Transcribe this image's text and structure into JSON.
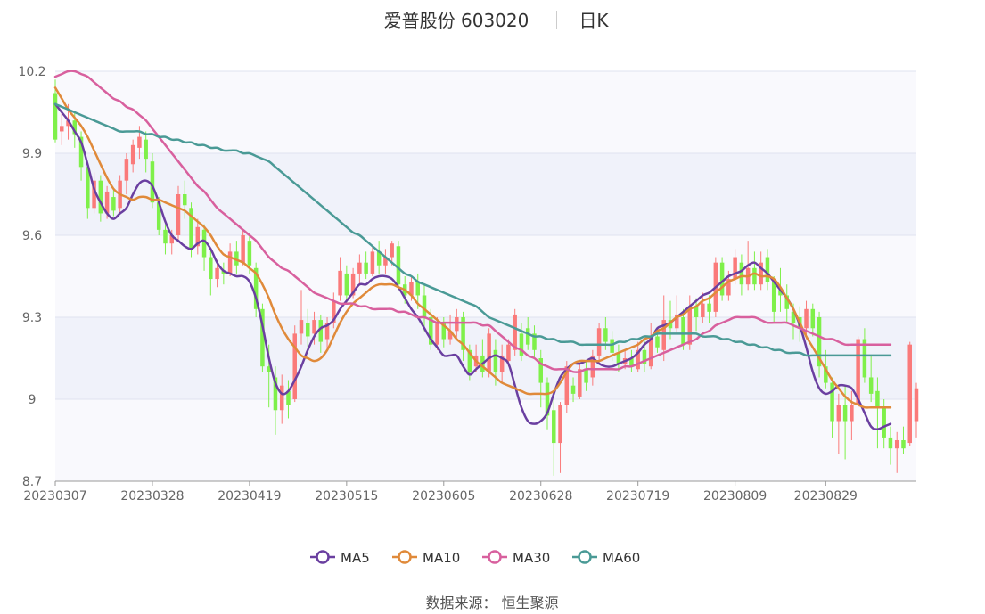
{
  "header": {
    "title": "爱普股份 603020",
    "period": "日K"
  },
  "source_text": "数据来源： 恒生聚源",
  "chart_data": {
    "type": "candlestick",
    "ylim": [
      8.7,
      10.2
    ],
    "yticks": [
      "10.2",
      "9.9",
      "9.6",
      "9.3",
      "9"
    ],
    "y_bottom_label": "8.7",
    "xticks": [
      {
        "label": "20230307",
        "index": 0
      },
      {
        "label": "20230328",
        "index": 15
      },
      {
        "label": "20230419",
        "index": 30
      },
      {
        "label": "20230515",
        "index": 45
      },
      {
        "label": "20230605",
        "index": 60
      },
      {
        "label": "20230628",
        "index": 75
      },
      {
        "label": "20230719",
        "index": 90
      },
      {
        "label": "20230809",
        "index": 105
      },
      {
        "label": "20230829",
        "index": 119
      }
    ],
    "up_color": "#fa7a7a",
    "down_color": "#7ff04a",
    "candles": [
      [
        10.12,
        9.95,
        10.17,
        9.94
      ],
      [
        9.98,
        10.0,
        10.05,
        9.93
      ],
      [
        10.0,
        10.02,
        10.08,
        9.95
      ],
      [
        10.02,
        9.97,
        10.05,
        9.92
      ],
      [
        9.96,
        9.85,
        9.98,
        9.8
      ],
      [
        9.85,
        9.7,
        9.86,
        9.66
      ],
      [
        9.7,
        9.8,
        9.83,
        9.68
      ],
      [
        9.8,
        9.68,
        9.82,
        9.65
      ],
      [
        9.68,
        9.76,
        9.78,
        9.66
      ],
      [
        9.74,
        9.69,
        9.77,
        9.67
      ],
      [
        9.7,
        9.8,
        9.82,
        9.68
      ],
      [
        9.8,
        9.88,
        9.9,
        9.75
      ],
      [
        9.86,
        9.93,
        9.95,
        9.83
      ],
      [
        9.92,
        9.96,
        10.0,
        9.88
      ],
      [
        9.95,
        9.88,
        9.98,
        9.83
      ],
      [
        9.87,
        9.72,
        9.9,
        9.7
      ],
      [
        9.72,
        9.62,
        9.74,
        9.6
      ],
      [
        9.62,
        9.57,
        9.64,
        9.53
      ],
      [
        9.57,
        9.6,
        9.62,
        9.53
      ],
      [
        9.6,
        9.75,
        9.78,
        9.58
      ],
      [
        9.75,
        9.71,
        9.8,
        9.66
      ],
      [
        9.7,
        9.55,
        9.72,
        9.52
      ],
      [
        9.56,
        9.63,
        9.66,
        9.53
      ],
      [
        9.62,
        9.52,
        9.64,
        9.47
      ],
      [
        9.52,
        9.44,
        9.55,
        9.38
      ],
      [
        9.44,
        9.48,
        9.51,
        9.41
      ],
      [
        9.47,
        9.46,
        9.5,
        9.42
      ],
      [
        9.46,
        9.54,
        9.57,
        9.45
      ],
      [
        9.54,
        9.49,
        9.58,
        9.46
      ],
      [
        9.5,
        9.6,
        9.62,
        9.49
      ],
      [
        9.58,
        9.49,
        9.6,
        9.46
      ],
      [
        9.48,
        9.33,
        9.5,
        9.3
      ],
      [
        9.33,
        9.12,
        9.35,
        9.1
      ],
      [
        9.12,
        9.1,
        9.2,
        8.97
      ],
      [
        9.08,
        8.96,
        9.12,
        8.87
      ],
      [
        8.96,
        9.05,
        9.09,
        8.91
      ],
      [
        9.03,
        8.98,
        9.07,
        8.93
      ],
      [
        9.0,
        9.24,
        9.27,
        8.99
      ],
      [
        9.24,
        9.29,
        9.4,
        9.2
      ],
      [
        9.28,
        9.23,
        9.33,
        9.19
      ],
      [
        9.24,
        9.29,
        9.32,
        9.2
      ],
      [
        9.29,
        9.21,
        9.31,
        9.17
      ],
      [
        9.22,
        9.28,
        9.3,
        9.18
      ],
      [
        9.28,
        9.36,
        9.39,
        9.26
      ],
      [
        9.38,
        9.47,
        9.52,
        9.36
      ],
      [
        9.46,
        9.38,
        9.49,
        9.35
      ],
      [
        9.38,
        9.46,
        9.48,
        9.37
      ],
      [
        9.46,
        9.5,
        9.53,
        9.42
      ],
      [
        9.5,
        9.46,
        9.54,
        9.44
      ],
      [
        9.46,
        9.54,
        9.56,
        9.45
      ],
      [
        9.54,
        9.49,
        9.58,
        9.46
      ],
      [
        9.49,
        9.52,
        9.55,
        9.46
      ],
      [
        9.52,
        9.57,
        9.58,
        9.49
      ],
      [
        9.56,
        9.42,
        9.58,
        9.4
      ],
      [
        9.42,
        9.38,
        9.45,
        9.35
      ],
      [
        9.38,
        9.43,
        9.45,
        9.36
      ],
      [
        9.43,
        9.38,
        9.46,
        9.33
      ],
      [
        9.38,
        9.3,
        9.42,
        9.25
      ],
      [
        9.3,
        9.2,
        9.33,
        9.18
      ],
      [
        9.2,
        9.28,
        9.3,
        9.18
      ],
      [
        9.28,
        9.22,
        9.3,
        9.19
      ],
      [
        9.22,
        9.25,
        9.31,
        9.2
      ],
      [
        9.25,
        9.3,
        9.33,
        9.22
      ],
      [
        9.3,
        9.18,
        9.32,
        9.14
      ],
      [
        9.18,
        9.1,
        9.2,
        9.07
      ],
      [
        9.12,
        9.16,
        9.2,
        9.1
      ],
      [
        9.16,
        9.1,
        9.22,
        9.08
      ],
      [
        9.1,
        9.24,
        9.26,
        9.08
      ],
      [
        9.18,
        9.1,
        9.22,
        9.05
      ],
      [
        9.1,
        9.16,
        9.2,
        9.06
      ],
      [
        9.14,
        9.2,
        9.22,
        9.12
      ],
      [
        9.18,
        9.31,
        9.33,
        9.16
      ],
      [
        9.24,
        9.16,
        9.28,
        9.14
      ],
      [
        9.26,
        9.2,
        9.3,
        9.18
      ],
      [
        9.24,
        9.18,
        9.27,
        9.15
      ],
      [
        9.15,
        9.06,
        9.18,
        8.97
      ],
      [
        9.06,
        8.94,
        9.08,
        8.89
      ],
      [
        8.96,
        8.84,
        9.0,
        8.72
      ],
      [
        8.84,
        8.98,
        8.99,
        8.73
      ],
      [
        8.98,
        9.12,
        9.14,
        8.95
      ],
      [
        9.05,
        9.02,
        9.08,
        8.99
      ],
      [
        9.01,
        9.11,
        9.13,
        9.0
      ],
      [
        9.11,
        9.06,
        9.14,
        9.03
      ],
      [
        9.08,
        9.16,
        9.18,
        9.05
      ],
      [
        9.16,
        9.26,
        9.28,
        9.13
      ],
      [
        9.26,
        9.21,
        9.3,
        9.18
      ],
      [
        9.22,
        9.17,
        9.25,
        9.14
      ],
      [
        9.17,
        9.13,
        9.2,
        9.1
      ],
      [
        9.13,
        9.15,
        9.18,
        9.11
      ],
      [
        9.15,
        9.12,
        9.18,
        9.1
      ],
      [
        9.11,
        9.18,
        9.21,
        9.1
      ],
      [
        9.18,
        9.13,
        9.22,
        9.1
      ],
      [
        9.12,
        9.23,
        9.28,
        9.11
      ],
      [
        9.23,
        9.19,
        9.25,
        9.17
      ],
      [
        9.18,
        9.29,
        9.38,
        9.14
      ],
      [
        9.29,
        9.26,
        9.36,
        9.22
      ],
      [
        9.26,
        9.31,
        9.38,
        9.24
      ],
      [
        9.3,
        9.2,
        9.33,
        9.18
      ],
      [
        9.2,
        9.34,
        9.38,
        9.18
      ],
      [
        9.34,
        9.3,
        9.37,
        9.25
      ],
      [
        9.3,
        9.35,
        9.39,
        9.28
      ],
      [
        9.35,
        9.32,
        9.38,
        9.28
      ],
      [
        9.32,
        9.5,
        9.52,
        9.3
      ],
      [
        9.5,
        9.38,
        9.52,
        9.36
      ],
      [
        9.38,
        9.44,
        9.47,
        9.36
      ],
      [
        9.44,
        9.52,
        9.55,
        9.42
      ],
      [
        9.5,
        9.42,
        9.53,
        9.38
      ],
      [
        9.42,
        9.48,
        9.58,
        9.4
      ],
      [
        9.48,
        9.42,
        9.54,
        9.4
      ],
      [
        9.42,
        9.5,
        9.54,
        9.4
      ],
      [
        9.52,
        9.43,
        9.55,
        9.4
      ],
      [
        9.43,
        9.32,
        9.45,
        9.28
      ],
      [
        9.4,
        9.38,
        9.48,
        9.32
      ],
      [
        9.38,
        9.33,
        9.42,
        9.28
      ],
      [
        9.32,
        9.28,
        9.35,
        9.22
      ],
      [
        9.3,
        9.26,
        9.34,
        9.21
      ],
      [
        9.26,
        9.33,
        9.36,
        9.22
      ],
      [
        9.33,
        9.26,
        9.35,
        9.23
      ],
      [
        9.3,
        9.12,
        9.32,
        9.08
      ],
      [
        9.12,
        9.06,
        9.18,
        9.04
      ],
      [
        9.06,
        8.92,
        9.08,
        8.86
      ],
      [
        8.92,
        8.98,
        9.02,
        8.8
      ],
      [
        8.98,
        8.92,
        9.05,
        8.78
      ],
      [
        8.92,
        8.98,
        9.03,
        8.85
      ],
      [
        8.98,
        9.22,
        9.23,
        8.97
      ],
      [
        9.22,
        9.08,
        9.26,
        9.06
      ],
      [
        9.08,
        9.02,
        9.16,
        8.99
      ],
      [
        9.03,
        8.97,
        9.08,
        8.82
      ],
      [
        8.97,
        8.86,
        9.0,
        8.82
      ],
      [
        8.86,
        8.82,
        8.9,
        8.76
      ],
      [
        8.82,
        8.85,
        8.88,
        8.73
      ],
      [
        8.85,
        8.82,
        8.9,
        8.8
      ],
      [
        8.84,
        9.2,
        9.21,
        8.83
      ],
      [
        8.92,
        9.04,
        9.06,
        8.86
      ]
    ],
    "series": [
      {
        "name": "MA5",
        "color": "#6a3fa0",
        "values": [
          10.08,
          10.05,
          10.02,
          9.98,
          9.94,
          9.86,
          9.77,
          9.72,
          9.68,
          9.66,
          9.68,
          9.7,
          9.75,
          9.79,
          9.8,
          9.78,
          9.72,
          9.65,
          9.6,
          9.58,
          9.56,
          9.55,
          9.57,
          9.58,
          9.55,
          9.5,
          9.47,
          9.46,
          9.45,
          9.45,
          9.43,
          9.37,
          9.27,
          9.15,
          9.06,
          9.02,
          9.03,
          9.07,
          9.12,
          9.18,
          9.23,
          9.26,
          9.27,
          9.29,
          9.33,
          9.36,
          9.39,
          9.42,
          9.42,
          9.44,
          9.45,
          9.45,
          9.44,
          9.41,
          9.37,
          9.33,
          9.3,
          9.26,
          9.22,
          9.19,
          9.16,
          9.16,
          9.16,
          9.12,
          9.09,
          9.11,
          9.13,
          9.15,
          9.16,
          9.15,
          9.13,
          9.05,
          8.97,
          8.92,
          8.91,
          8.92,
          8.95,
          9.02,
          9.08,
          9.11,
          9.13,
          9.13,
          9.14,
          9.15,
          9.13,
          9.12,
          9.12,
          9.13,
          9.14,
          9.15,
          9.17,
          9.2,
          9.22,
          9.26,
          9.27,
          9.28,
          9.3,
          9.32,
          9.34,
          9.36,
          9.38,
          9.39,
          9.41,
          9.43,
          9.45,
          9.46,
          9.47,
          9.49,
          9.5,
          9.48,
          9.46,
          9.43,
          9.4,
          9.37,
          9.33,
          9.27,
          9.19,
          9.1,
          9.04,
          9.02,
          9.03,
          9.05,
          9.05,
          9.04,
          9.0,
          8.95,
          8.9,
          8.89,
          8.9,
          8.91
        ]
      },
      {
        "name": "MA10",
        "color": "#e08a3a",
        "values": [
          10.14,
          10.1,
          10.06,
          10.03,
          10.0,
          9.96,
          9.91,
          9.86,
          9.81,
          9.77,
          9.75,
          9.74,
          9.73,
          9.74,
          9.74,
          9.73,
          9.73,
          9.72,
          9.71,
          9.7,
          9.69,
          9.67,
          9.65,
          9.63,
          9.6,
          9.56,
          9.53,
          9.52,
          9.51,
          9.5,
          9.48,
          9.46,
          9.42,
          9.37,
          9.31,
          9.26,
          9.22,
          9.19,
          9.16,
          9.15,
          9.14,
          9.15,
          9.18,
          9.23,
          9.28,
          9.32,
          9.35,
          9.37,
          9.39,
          9.41,
          9.42,
          9.42,
          9.42,
          9.41,
          9.4,
          9.38,
          9.35,
          9.33,
          9.31,
          9.29,
          9.27,
          9.25,
          9.22,
          9.2,
          9.17,
          9.14,
          9.12,
          9.1,
          9.08,
          9.06,
          9.05,
          9.04,
          9.03,
          9.02,
          9.02,
          9.02,
          9.02,
          9.03,
          9.06,
          9.1,
          9.13,
          9.14,
          9.14,
          9.14,
          9.14,
          9.15,
          9.16,
          9.17,
          9.18,
          9.19,
          9.2,
          9.22,
          9.23,
          9.25,
          9.26,
          9.28,
          9.3,
          9.31,
          9.33,
          9.34,
          9.36,
          9.37,
          9.39,
          9.41,
          9.43,
          9.44,
          9.45,
          9.45,
          9.46,
          9.45,
          9.45,
          9.44,
          9.41,
          9.37,
          9.33,
          9.28,
          9.23,
          9.19,
          9.15,
          9.11,
          9.07,
          9.04,
          9.01,
          8.99,
          8.98,
          8.97,
          8.97,
          8.97,
          8.97,
          8.97
        ]
      },
      {
        "name": "MA30",
        "color": "#d8609e",
        "values": [
          10.18,
          10.19,
          10.2,
          10.2,
          10.19,
          10.18,
          10.16,
          10.14,
          10.12,
          10.1,
          10.09,
          10.07,
          10.06,
          10.04,
          10.02,
          9.99,
          9.96,
          9.93,
          9.9,
          9.87,
          9.84,
          9.81,
          9.78,
          9.76,
          9.73,
          9.7,
          9.68,
          9.66,
          9.64,
          9.62,
          9.6,
          9.58,
          9.55,
          9.52,
          9.5,
          9.48,
          9.47,
          9.45,
          9.43,
          9.41,
          9.39,
          9.38,
          9.37,
          9.36,
          9.35,
          9.35,
          9.35,
          9.34,
          9.34,
          9.33,
          9.33,
          9.33,
          9.33,
          9.32,
          9.32,
          9.31,
          9.3,
          9.3,
          9.29,
          9.28,
          9.28,
          9.28,
          9.28,
          9.28,
          9.28,
          9.28,
          9.27,
          9.27,
          9.25,
          9.23,
          9.21,
          9.19,
          9.18,
          9.16,
          9.15,
          9.13,
          9.12,
          9.11,
          9.11,
          9.11,
          9.1,
          9.1,
          9.11,
          9.11,
          9.11,
          9.11,
          9.11,
          9.11,
          9.12,
          9.12,
          9.13,
          9.14,
          9.15,
          9.16,
          9.17,
          9.18,
          9.19,
          9.2,
          9.21,
          9.22,
          9.24,
          9.25,
          9.27,
          9.28,
          9.29,
          9.3,
          9.3,
          9.3,
          9.3,
          9.29,
          9.28,
          9.28,
          9.28,
          9.28,
          9.27,
          9.26,
          9.25,
          9.24,
          9.23,
          9.22,
          9.22,
          9.21,
          9.2,
          9.2,
          9.2,
          9.2,
          9.2,
          9.2,
          9.2,
          9.2
        ]
      },
      {
        "name": "MA60",
        "color": "#4a9a96",
        "values": [
          10.08,
          10.07,
          10.06,
          10.05,
          10.04,
          10.03,
          10.02,
          10.01,
          10.0,
          9.99,
          9.98,
          9.98,
          9.98,
          9.98,
          9.97,
          9.97,
          9.96,
          9.96,
          9.95,
          9.95,
          9.94,
          9.94,
          9.93,
          9.93,
          9.92,
          9.92,
          9.91,
          9.91,
          9.91,
          9.9,
          9.9,
          9.89,
          9.88,
          9.87,
          9.85,
          9.83,
          9.81,
          9.79,
          9.77,
          9.75,
          9.73,
          9.71,
          9.69,
          9.67,
          9.65,
          9.63,
          9.61,
          9.6,
          9.58,
          9.56,
          9.54,
          9.52,
          9.5,
          9.48,
          9.46,
          9.45,
          9.43,
          9.42,
          9.41,
          9.4,
          9.39,
          9.38,
          9.37,
          9.36,
          9.35,
          9.34,
          9.32,
          9.3,
          9.29,
          9.28,
          9.27,
          9.26,
          9.25,
          9.24,
          9.23,
          9.23,
          9.22,
          9.22,
          9.21,
          9.21,
          9.21,
          9.2,
          9.2,
          9.2,
          9.2,
          9.2,
          9.2,
          9.21,
          9.21,
          9.22,
          9.22,
          9.23,
          9.23,
          9.24,
          9.24,
          9.24,
          9.24,
          9.24,
          9.24,
          9.24,
          9.23,
          9.23,
          9.23,
          9.22,
          9.22,
          9.21,
          9.21,
          9.2,
          9.2,
          9.19,
          9.19,
          9.18,
          9.18,
          9.17,
          9.17,
          9.17,
          9.16,
          9.16,
          9.16,
          9.16,
          9.16,
          9.16,
          9.16,
          9.16,
          9.16,
          9.16,
          9.16,
          9.16,
          9.16,
          9.16
        ]
      }
    ]
  }
}
